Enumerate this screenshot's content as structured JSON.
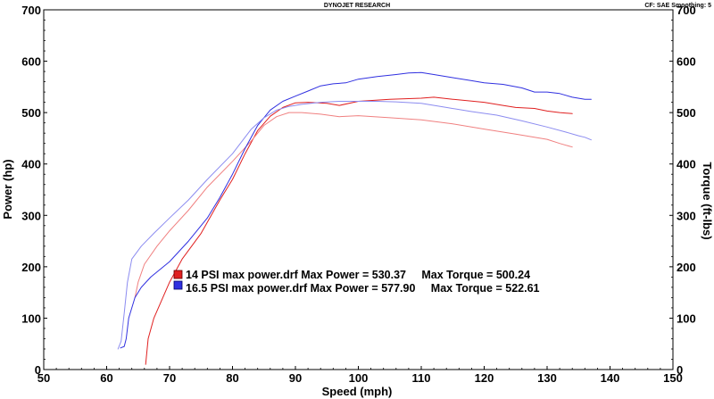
{
  "header": {
    "title": "DYNOJET RESEARCH",
    "settings": "CF: SAE  Smoothing: 5"
  },
  "chart_data": {
    "type": "line",
    "xlabel": "Speed (mph)",
    "ylabel_left": "Power (hp)",
    "ylabel_right": "Torque (ft-lbs)",
    "xlim": [
      50,
      150
    ],
    "ylim": [
      0,
      700
    ],
    "x_ticks": [
      50,
      60,
      70,
      80,
      90,
      100,
      110,
      120,
      130,
      140,
      150
    ],
    "y_ticks": [
      0,
      100,
      200,
      300,
      400,
      500,
      600,
      700
    ],
    "grid": false,
    "legend": [
      {
        "name": "14 PSI max power.drf",
        "color": "#e02020",
        "text": "14 PSI max power.drf Max Power = 530.37     Max Torque = 500.24"
      },
      {
        "name": "16.5 PSI max power.drf",
        "color": "#3030e0",
        "text": "16.5 PSI max power.drf Max Power = 577.90     Max Torque = 522.61"
      }
    ],
    "series": [
      {
        "name": "14 PSI max power.drf",
        "measure": "Power",
        "color": "#e02020",
        "points": [
          [
            66.2,
            10
          ],
          [
            66.6,
            60
          ],
          [
            67.5,
            100
          ],
          [
            70,
            170
          ],
          [
            72,
            215
          ],
          [
            75,
            265
          ],
          [
            78,
            330
          ],
          [
            80,
            370
          ],
          [
            82,
            420
          ],
          [
            84,
            465
          ],
          [
            86,
            493
          ],
          [
            88,
            510
          ],
          [
            90,
            519
          ],
          [
            92,
            520
          ],
          [
            95,
            518
          ],
          [
            97,
            514
          ],
          [
            100,
            522
          ],
          [
            105,
            526
          ],
          [
            110,
            528
          ],
          [
            112,
            530
          ],
          [
            115,
            526
          ],
          [
            120,
            520
          ],
          [
            123,
            514
          ],
          [
            125,
            510
          ],
          [
            128,
            508
          ],
          [
            130,
            503
          ],
          [
            132,
            500
          ],
          [
            134,
            498
          ]
        ]
      },
      {
        "name": "14 PSI max power.drf",
        "measure": "Torque",
        "color": "#f08080",
        "points": [
          [
            64.5,
            140
          ],
          [
            65,
            170
          ],
          [
            66,
            205
          ],
          [
            68,
            240
          ],
          [
            70,
            270
          ],
          [
            73,
            310
          ],
          [
            76,
            355
          ],
          [
            80,
            405
          ],
          [
            83,
            445
          ],
          [
            85,
            475
          ],
          [
            87,
            492
          ],
          [
            89,
            500
          ],
          [
            91,
            500
          ],
          [
            94,
            497
          ],
          [
            97,
            492
          ],
          [
            100,
            494
          ],
          [
            105,
            490
          ],
          [
            110,
            486
          ],
          [
            115,
            478
          ],
          [
            120,
            468
          ],
          [
            125,
            458
          ],
          [
            130,
            448
          ],
          [
            132,
            440
          ],
          [
            134,
            433
          ]
        ]
      },
      {
        "name": "16.5 PSI max power.drf",
        "measure": "Power",
        "color": "#3030e0",
        "points": [
          [
            62.2,
            42
          ],
          [
            62.8,
            45
          ],
          [
            63.1,
            60
          ],
          [
            63.5,
            100
          ],
          [
            64.5,
            140
          ],
          [
            65.5,
            160
          ],
          [
            67,
            180
          ],
          [
            70,
            210
          ],
          [
            73,
            250
          ],
          [
            76,
            295
          ],
          [
            78,
            335
          ],
          [
            80,
            380
          ],
          [
            82,
            430
          ],
          [
            84,
            475
          ],
          [
            86,
            505
          ],
          [
            88,
            522
          ],
          [
            90,
            532
          ],
          [
            92,
            542
          ],
          [
            94,
            552
          ],
          [
            96,
            556
          ],
          [
            98,
            558
          ],
          [
            100,
            565
          ],
          [
            103,
            570
          ],
          [
            106,
            574
          ],
          [
            108,
            577
          ],
          [
            110,
            578
          ],
          [
            112,
            574
          ],
          [
            115,
            568
          ],
          [
            118,
            562
          ],
          [
            120,
            558
          ],
          [
            123,
            555
          ],
          [
            126,
            548
          ],
          [
            128,
            540
          ],
          [
            130,
            540
          ],
          [
            132,
            537
          ],
          [
            134,
            530
          ],
          [
            136,
            526
          ],
          [
            137,
            526
          ]
        ]
      },
      {
        "name": "16.5 PSI max power.drf",
        "measure": "Torque",
        "color": "#8c8cf0",
        "points": [
          [
            61.8,
            40
          ],
          [
            62.3,
            55
          ],
          [
            62.8,
            110
          ],
          [
            63.3,
            170
          ],
          [
            64,
            215
          ],
          [
            65.5,
            240
          ],
          [
            67.5,
            265
          ],
          [
            70,
            295
          ],
          [
            73,
            330
          ],
          [
            76,
            370
          ],
          [
            80,
            420
          ],
          [
            83,
            468
          ],
          [
            85,
            490
          ],
          [
            87,
            505
          ],
          [
            89,
            512
          ],
          [
            91,
            516
          ],
          [
            94,
            520
          ],
          [
            97,
            522
          ],
          [
            100,
            522
          ],
          [
            103,
            522
          ],
          [
            106,
            521
          ],
          [
            110,
            518
          ],
          [
            114,
            510
          ],
          [
            118,
            502
          ],
          [
            122,
            495
          ],
          [
            126,
            484
          ],
          [
            130,
            472
          ],
          [
            133,
            462
          ],
          [
            135,
            455
          ],
          [
            136,
            452
          ],
          [
            137,
            447
          ]
        ]
      }
    ]
  }
}
